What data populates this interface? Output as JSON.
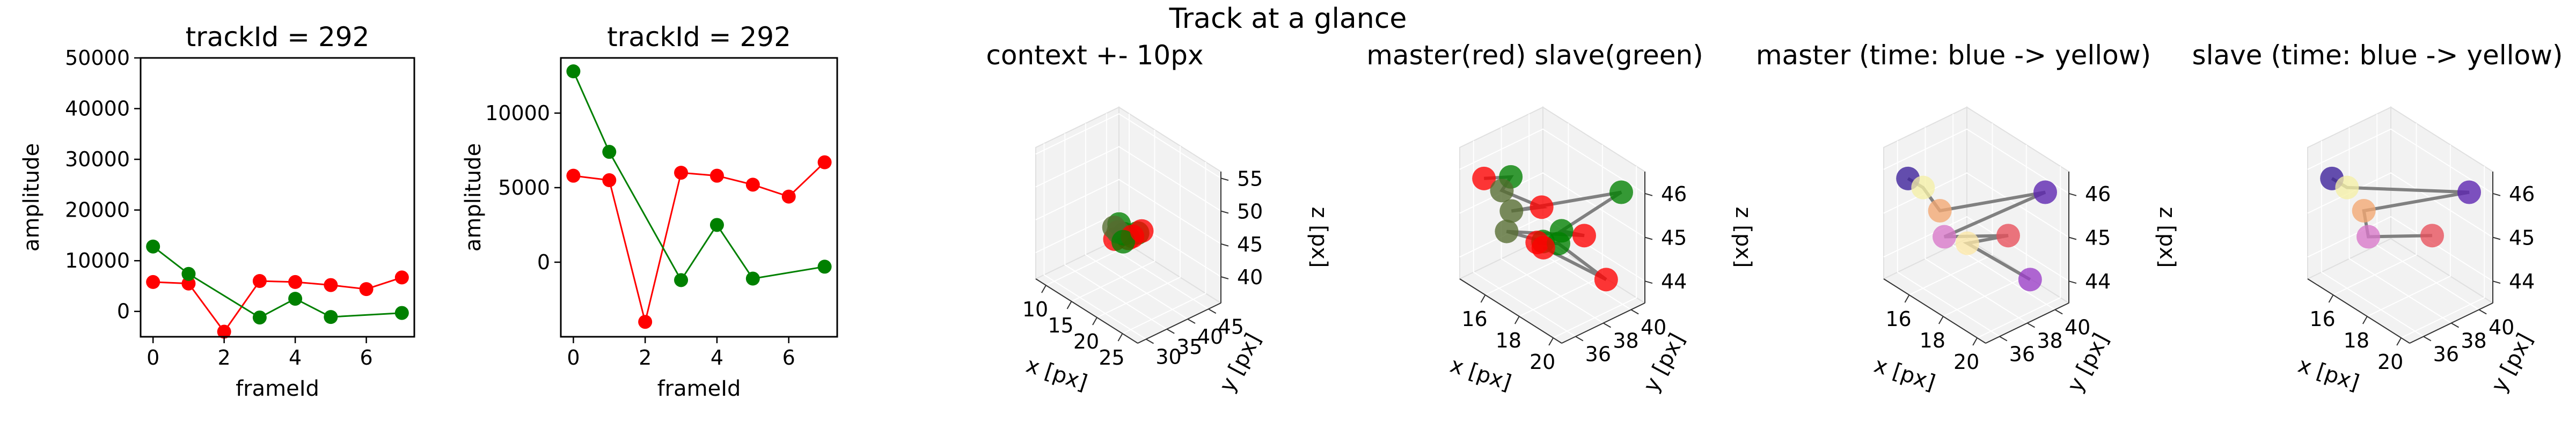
{
  "figure": {
    "title": "Track at a glance"
  },
  "chart_data": [
    {
      "type": "line",
      "title": "trackId = 292",
      "xlabel": "frameId",
      "ylabel": "amplitude",
      "xlim": [
        -0.35,
        7.35
      ],
      "ylim": [
        -5000,
        50000
      ],
      "xticks": [
        0,
        2,
        4,
        6
      ],
      "yticks": [
        0,
        10000,
        20000,
        30000,
        40000,
        50000
      ],
      "series": [
        {
          "color": "#ff0000",
          "x": [
            0,
            1,
            2,
            3,
            4,
            5,
            6,
            7
          ],
          "values": [
            5800,
            5500,
            -4000,
            6000,
            5800,
            5200,
            4400,
            6700
          ]
        },
        {
          "color": "#008000",
          "x": [
            0,
            1,
            3,
            4,
            5,
            7
          ],
          "values": [
            12800,
            7400,
            -1200,
            2500,
            -1100,
            -300
          ]
        }
      ]
    },
    {
      "type": "line",
      "title": "trackId = 292",
      "xlabel": "frameId",
      "ylabel": "amplitude",
      "xlim": [
        -0.35,
        7.35
      ],
      "ylim": [
        -5000,
        13700
      ],
      "xticks": [
        0,
        2,
        4,
        6
      ],
      "yticks": [
        0,
        5000,
        10000
      ],
      "series": [
        {
          "color": "#ff0000",
          "x": [
            0,
            1,
            2,
            3,
            4,
            5,
            6,
            7
          ],
          "values": [
            5800,
            5500,
            -4000,
            6000,
            5800,
            5200,
            4400,
            6700
          ]
        },
        {
          "color": "#008000",
          "x": [
            0,
            1,
            3,
            4,
            5,
            7
          ],
          "values": [
            12800,
            7400,
            -1200,
            2500,
            -1100,
            -300
          ]
        }
      ]
    },
    {
      "type": "scatter",
      "title": "context +- 10px",
      "xlabel": "x [px]",
      "ylabel": "y [px]",
      "zlabel": "z [px]",
      "xlim": [
        8,
        28
      ],
      "ylim": [
        28,
        48
      ],
      "zlim": [
        36,
        56
      ],
      "xticks": [
        10,
        15,
        20,
        25
      ],
      "yticks": [
        30,
        35,
        40,
        45
      ],
      "zticks": [
        40,
        45,
        50,
        55
      ],
      "points": [
        {
          "x": 17,
          "y": 36,
          "z": 44,
          "color": "#ff0000"
        },
        {
          "x": 18,
          "y": 38,
          "z": 44,
          "color": "#ff0000"
        },
        {
          "x": 18,
          "y": 37,
          "z": 45,
          "color": "#008000"
        },
        {
          "x": 17,
          "y": 37,
          "z": 46,
          "color": "#008000"
        },
        {
          "x": 16,
          "y": 37,
          "z": 45,
          "color": "#556b2f"
        },
        {
          "x": 19,
          "y": 39,
          "z": 45,
          "color": "#008000"
        },
        {
          "x": 16,
          "y": 38,
          "z": 44,
          "color": "#556b2f"
        },
        {
          "x": 18,
          "y": 39,
          "z": 44,
          "color": "#ff0000"
        },
        {
          "x": 17,
          "y": 38,
          "z": 43,
          "color": "#008000"
        },
        {
          "x": 19,
          "y": 40,
          "z": 45,
          "color": "#ff0000"
        }
      ]
    },
    {
      "type": "scatter",
      "title": "master(red) slave(green)",
      "xlabel": "x [px]",
      "ylabel": "y [px]",
      "zlabel": "z [px]",
      "xlim": [
        14.5,
        20.5
      ],
      "ylim": [
        35,
        41
      ],
      "zlim": [
        43.5,
        46.5
      ],
      "xticks": [
        16,
        18,
        20
      ],
      "yticks": [
        36,
        38,
        40
      ],
      "zticks": [
        44,
        45,
        46
      ],
      "connect_order": [
        0,
        1,
        2,
        3,
        4,
        5,
        6,
        7,
        8,
        9,
        10,
        11,
        12,
        13
      ],
      "line_color": "#808080",
      "points": [
        {
          "x": 15.6,
          "y": 35.4,
          "z": 46.0,
          "color": "#ff0000"
        },
        {
          "x": 16.2,
          "y": 36.6,
          "z": 46.0,
          "color": "#008000"
        },
        {
          "x": 16.0,
          "y": 36.2,
          "z": 45.7,
          "color": "#556b2f"
        },
        {
          "x": 17.2,
          "y": 37.6,
          "z": 45.4,
          "color": "#ff0000"
        },
        {
          "x": 16.4,
          "y": 36.4,
          "z": 45.3,
          "color": "#556b2f"
        },
        {
          "x": 19.6,
          "y": 40.4,
          "z": 45.9,
          "color": "#008000"
        },
        {
          "x": 17.8,
          "y": 38.3,
          "z": 44.9,
          "color": "#008000"
        },
        {
          "x": 18.4,
          "y": 39.2,
          "z": 44.8,
          "color": "#ff0000"
        },
        {
          "x": 16.2,
          "y": 36.3,
          "z": 44.8,
          "color": "#556b2f"
        },
        {
          "x": 17.2,
          "y": 37.7,
          "z": 44.6,
          "color": "#008000"
        },
        {
          "x": 17.1,
          "y": 37.4,
          "z": 44.6,
          "color": "#ff0000"
        },
        {
          "x": 17.7,
          "y": 38.2,
          "z": 44.6,
          "color": "#008000"
        },
        {
          "x": 19.2,
          "y": 39.8,
          "z": 43.9,
          "color": "#ff0000"
        },
        {
          "x": 17.3,
          "y": 37.6,
          "z": 44.5,
          "color": "#ff0000"
        }
      ]
    },
    {
      "type": "scatter",
      "title": "master (time: blue -> yellow)",
      "xlabel": "x [px]",
      "ylabel": "y [px]",
      "zlabel": "z [px]",
      "xlim": [
        14.5,
        20.5
      ],
      "ylim": [
        35,
        41
      ],
      "zlim": [
        43.5,
        46.5
      ],
      "xticks": [
        16,
        18,
        20
      ],
      "yticks": [
        36,
        38,
        40
      ],
      "zticks": [
        44,
        45,
        46
      ],
      "connect_order": [
        0,
        1,
        2,
        3,
        4,
        5,
        6,
        7
      ],
      "line_color": "#808080",
      "points": [
        {
          "x": 15.6,
          "y": 35.4,
          "z": 46.0,
          "color": "#3b1f9a"
        },
        {
          "x": 16.0,
          "y": 36.0,
          "z": 45.8,
          "color": "#f5f0a6"
        },
        {
          "x": 16.5,
          "y": 36.6,
          "z": 45.3,
          "color": "#f4a872"
        },
        {
          "x": 19.6,
          "y": 40.4,
          "z": 45.9,
          "color": "#5b22b0"
        },
        {
          "x": 16.6,
          "y": 36.8,
          "z": 44.7,
          "color": "#d977c9"
        },
        {
          "x": 18.4,
          "y": 39.2,
          "z": 44.8,
          "color": "#e8505b"
        },
        {
          "x": 17.3,
          "y": 37.6,
          "z": 44.6,
          "color": "#fce8a8"
        },
        {
          "x": 19.2,
          "y": 39.8,
          "z": 43.9,
          "color": "#9b3ec8"
        }
      ]
    },
    {
      "type": "scatter",
      "title": "slave (time: blue -> yellow)",
      "xlabel": "x [px]",
      "ylabel": "y [px]",
      "zlabel": "z [px]",
      "xlim": [
        14.5,
        20.5
      ],
      "ylim": [
        35,
        41
      ],
      "zlim": [
        43.5,
        46.5
      ],
      "xticks": [
        16,
        18,
        20
      ],
      "yticks": [
        36,
        38,
        40
      ],
      "zticks": [
        44,
        45,
        46
      ],
      "connect_order": [
        0,
        1,
        2,
        3,
        4,
        5
      ],
      "line_color": "#808080",
      "points": [
        {
          "x": 15.6,
          "y": 35.4,
          "z": 46.0,
          "color": "#3b1f9a"
        },
        {
          "x": 16.0,
          "y": 36.0,
          "z": 45.8,
          "color": "#f5f0a6"
        },
        {
          "x": 19.6,
          "y": 40.4,
          "z": 45.9,
          "color": "#5b22b0"
        },
        {
          "x": 16.5,
          "y": 36.6,
          "z": 45.3,
          "color": "#f4a872"
        },
        {
          "x": 16.6,
          "y": 36.8,
          "z": 44.7,
          "color": "#d977c9"
        },
        {
          "x": 18.4,
          "y": 39.2,
          "z": 44.8,
          "color": "#e8505b"
        }
      ]
    }
  ]
}
